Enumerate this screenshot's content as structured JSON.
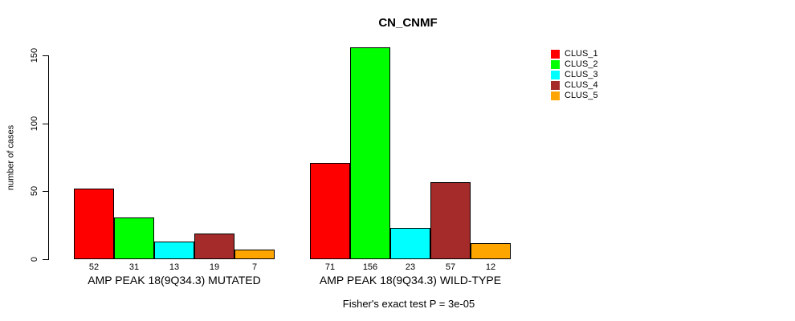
{
  "chart_data": {
    "type": "bar",
    "title": "CN_CNMF",
    "ylabel": "number of cases",
    "xlabel": "",
    "ylim": [
      0,
      160
    ],
    "yticks": [
      0,
      50,
      100,
      150
    ],
    "grid": false,
    "legend_position": "right",
    "series_names": [
      "CLUS_1",
      "CLUS_2",
      "CLUS_3",
      "CLUS_4",
      "CLUS_5"
    ],
    "colors": [
      "#FF0000",
      "#00FF00",
      "#00FFFF",
      "#A52A2A",
      "#FFA500"
    ],
    "groups": [
      {
        "label": "AMP PEAK 18(9Q34.3) MUTATED",
        "values": [
          52,
          31,
          13,
          19,
          7
        ]
      },
      {
        "label": "AMP PEAK 18(9Q34.3) WILD-TYPE",
        "values": [
          71,
          156,
          23,
          57,
          12
        ]
      }
    ],
    "annotation": "Fisher's exact test P = 3e-05"
  },
  "legend": {
    "items": [
      {
        "label": "CLUS_1",
        "color": "#FF0000"
      },
      {
        "label": "CLUS_2",
        "color": "#00FF00"
      },
      {
        "label": "CLUS_3",
        "color": "#00FFFF"
      },
      {
        "label": "CLUS_4",
        "color": "#A52A2A"
      },
      {
        "label": "CLUS_5",
        "color": "#FFA500"
      }
    ]
  }
}
